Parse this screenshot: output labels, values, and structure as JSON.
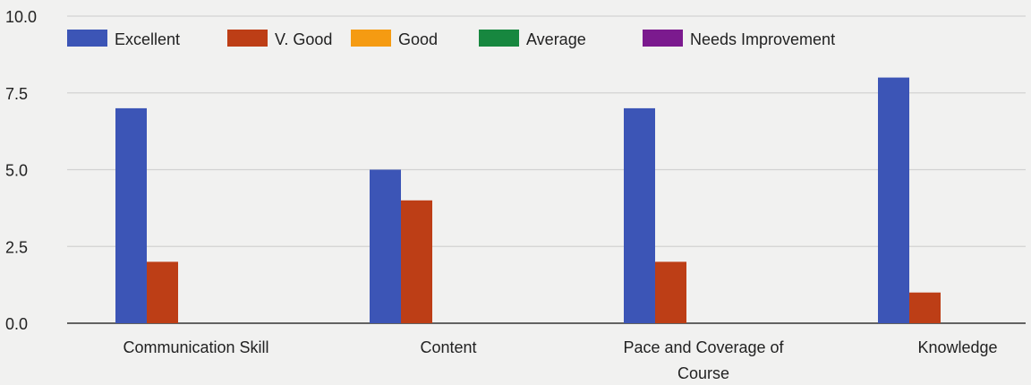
{
  "chart_data": {
    "type": "bar",
    "title": "",
    "xlabel": "",
    "ylabel": "",
    "categories": [
      "Communication Skill",
      "Content",
      "Pace and Coverage of Course",
      "Knowledge"
    ],
    "category_lines": [
      [
        "Communication Skill"
      ],
      [
        "Content"
      ],
      [
        "Pace and Coverage of",
        "Course"
      ],
      [
        "Knowledge"
      ]
    ],
    "ylim": [
      0,
      10
    ],
    "yticks": [
      "0.0",
      "2.5",
      "5.0",
      "7.5",
      "10.0"
    ],
    "ytick_values": [
      0,
      2.5,
      5,
      7.5,
      10
    ],
    "grid": true,
    "legend_position": "top-left",
    "series": [
      {
        "name": "Excellent",
        "color": "#3c55b6",
        "values": [
          7,
          5,
          7,
          8
        ]
      },
      {
        "name": "V. Good",
        "color": "#bd3e16",
        "values": [
          2,
          4,
          2,
          1
        ]
      },
      {
        "name": "Good",
        "color": "#f59b12",
        "values": [
          0,
          0,
          0,
          0
        ]
      },
      {
        "name": "Average",
        "color": "#17873f",
        "values": [
          0,
          0,
          0,
          0
        ]
      },
      {
        "name": "Needs Improvement",
        "color": "#7b1a8e",
        "values": [
          0,
          0,
          0,
          0
        ]
      }
    ]
  }
}
